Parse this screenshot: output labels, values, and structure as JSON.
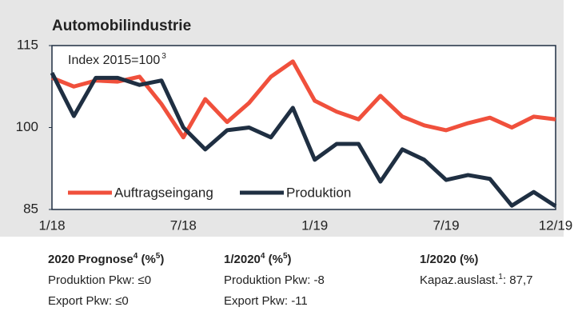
{
  "chart_data": {
    "type": "line",
    "title": "Automobilindustrie",
    "annotation": {
      "text": "Index 2015=100",
      "sup": "3"
    },
    "categories": [
      "1/18",
      null,
      null,
      null,
      null,
      null,
      "7/18",
      null,
      null,
      null,
      null,
      null,
      "1/19",
      null,
      null,
      null,
      null,
      null,
      "7/19",
      null,
      null,
      null,
      null,
      "12/19"
    ],
    "series": [
      {
        "name": "Auftragseingang",
        "color": "#f0503c",
        "values": [
          109.1,
          107.5,
          108.6,
          108.4,
          109.3,
          104.3,
          98.2,
          105.2,
          101,
          104.5,
          109.3,
          112.1,
          104.9,
          102.9,
          101.5,
          105.8,
          102,
          100.4,
          99.5,
          100.8,
          101.8,
          100,
          102,
          101.5
        ]
      },
      {
        "name": "Produktion",
        "color": "#1f2f42",
        "values": [
          110,
          102.1,
          109.1,
          109.1,
          107.8,
          108.6,
          100,
          96,
          99.5,
          100,
          98.2,
          103.6,
          94.1,
          97,
          97,
          90.1,
          96,
          94.1,
          90.4,
          91.3,
          90.6,
          85.7,
          88.2,
          85.6
        ]
      }
    ],
    "ylim": [
      85,
      115
    ],
    "yticks": [
      85,
      100,
      115
    ],
    "grid": false
  },
  "notes": [
    {
      "heading": [
        "2020 Prognose",
        "4",
        " (%",
        "5",
        ")"
      ],
      "lines": [
        [
          "Produktion Pkw: ≤0"
        ],
        [
          "Export Pkw: ≤0"
        ]
      ]
    },
    {
      "heading": [
        "1/2020",
        "4",
        " (%",
        "5",
        ")"
      ],
      "lines": [
        [
          "Produktion Pkw: -8"
        ],
        [
          "Export Pkw: -11"
        ]
      ]
    },
    {
      "heading": [
        "1/2020 (%)"
      ],
      "lines": [
        [
          "Kapaz.auslast.",
          "1",
          ": 87,7"
        ]
      ]
    }
  ]
}
